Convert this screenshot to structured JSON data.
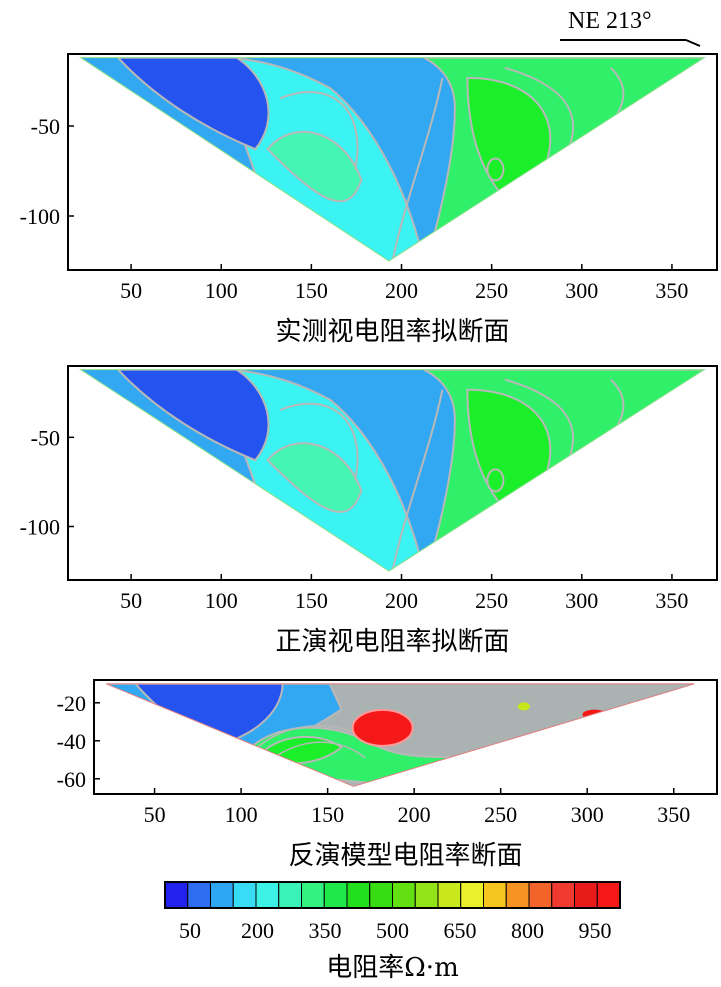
{
  "direction": {
    "label": "NE 213°"
  },
  "chart_data": [
    {
      "type": "heatmap",
      "title": "实测视电阻率拟断面",
      "x_ticks": [
        "50",
        "100",
        "150",
        "200",
        "250",
        "300",
        "350"
      ],
      "y_ticks": [
        "-50",
        "-100"
      ],
      "xlim": [
        15,
        375
      ],
      "ylim": [
        -130,
        -10
      ],
      "section_apex": {
        "x": 193,
        "y": -125
      },
      "section_top": {
        "x_left": 22,
        "x_right": 368,
        "y": -12
      }
    },
    {
      "type": "heatmap",
      "title": "正演视电阻率拟断面",
      "x_ticks": [
        "50",
        "100",
        "150",
        "200",
        "250",
        "300",
        "350"
      ],
      "y_ticks": [
        "-50",
        "-100"
      ],
      "xlim": [
        15,
        375
      ],
      "ylim": [
        -130,
        -10
      ],
      "section_apex": {
        "x": 193,
        "y": -125
      },
      "section_top": {
        "x_left": 22,
        "x_right": 368,
        "y": -12
      }
    },
    {
      "type": "heatmap",
      "title": "反演模型电阻率断面",
      "x_ticks": [
        "50",
        "100",
        "150",
        "200",
        "250",
        "300",
        "350"
      ],
      "y_ticks": [
        "-20",
        "-40",
        "-60"
      ],
      "xlim": [
        15,
        375
      ],
      "ylim": [
        -68,
        -8
      ],
      "section_apex": {
        "x": 165,
        "y": -64
      },
      "section_top": {
        "x_left": 22,
        "x_right": 362,
        "y": -10
      }
    }
  ],
  "colorbar": {
    "label": "电阻率Ω·m",
    "tick_labels": [
      "50",
      "200",
      "350",
      "500",
      "650",
      "800",
      "950"
    ],
    "colors": [
      "#2222ee",
      "#2f6df0",
      "#2fa6f2",
      "#38dcf5",
      "#3cf2e6",
      "#38f2b8",
      "#33f280",
      "#1fe84a",
      "#22e01e",
      "#37dc12",
      "#62e012",
      "#92e418",
      "#c8e81c",
      "#eaf02a",
      "#f6c41e",
      "#f59422",
      "#f2642a",
      "#f03a30",
      "#e81a1a",
      "#f51818"
    ]
  },
  "palette": {
    "deep_blue": "#2553f0",
    "blue": "#33a8f2",
    "cyan": "#3af3f2",
    "aqua": "#45f5b4",
    "green": "#30f06a",
    "bright_green": "#1aef2a",
    "gray": "#aab2b2",
    "red": "#f51818",
    "contour": "#b8b8b8"
  }
}
